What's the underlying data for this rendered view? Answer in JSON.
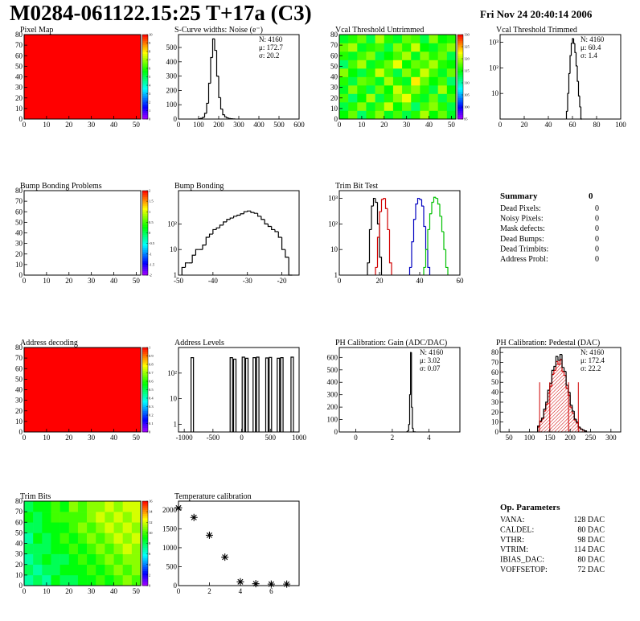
{
  "header": {
    "title": "M0284-061122.15:25 T+17a (C3)",
    "date": "Fri Nov 24 20:40:14 2006"
  },
  "chart_data": [
    {
      "type": "heatmap",
      "title": "Pixel Map",
      "xlim": [
        0,
        52
      ],
      "xticks": [
        0,
        10,
        20,
        30,
        40,
        50
      ],
      "ylim": [
        0,
        80
      ],
      "yticks": [
        0,
        10,
        20,
        30,
        40,
        50,
        60,
        70,
        80
      ],
      "zlim": [
        0,
        10
      ],
      "zticks": [
        0,
        1,
        2,
        3,
        4,
        5,
        6,
        7,
        8,
        9,
        10
      ],
      "z": [
        [
          10
        ]
      ]
    },
    {
      "type": "histogram",
      "title": "S-Curve widths: Noise (e⁻)",
      "xlim": [
        0,
        600
      ],
      "xticks": [
        0,
        100,
        200,
        300,
        400,
        500,
        600
      ],
      "ylim": [
        0,
        590
      ],
      "yticks": [
        0,
        100,
        200,
        300,
        400,
        500
      ],
      "log_y": false,
      "series": [
        {
          "color": "#000000",
          "bins": [
            100,
            110,
            120,
            130,
            140,
            150,
            160,
            170,
            180,
            190,
            200,
            210,
            220,
            230,
            240,
            250,
            260,
            270,
            280
          ],
          "counts": [
            2,
            5,
            12,
            40,
            110,
            250,
            430,
            560,
            480,
            300,
            150,
            70,
            30,
            15,
            8,
            4,
            2,
            1
          ]
        }
      ],
      "stats": [
        "N: 4160",
        "μ: 172.7",
        "σ: 20.2"
      ]
    },
    {
      "type": "heatmap",
      "title": "Vcal Threshold Untrimmed",
      "xlim": [
        0,
        52
      ],
      "xticks": [
        0,
        10,
        20,
        30,
        40,
        50
      ],
      "ylim": [
        0,
        80
      ],
      "yticks": [
        0,
        10,
        20,
        30,
        40,
        50,
        60,
        70,
        80
      ],
      "zlim": [
        95,
        130
      ],
      "zticks": [
        95,
        100,
        105,
        110,
        115,
        120,
        125,
        130
      ],
      "z": [
        [
          115,
          118,
          112,
          116,
          119,
          114,
          117,
          113,
          116,
          120,
          115,
          118,
          114
        ],
        [
          113,
          116,
          119,
          114,
          117,
          121,
          115,
          118,
          112,
          117,
          119,
          116,
          113
        ],
        [
          117,
          112,
          115,
          120,
          113,
          116,
          119,
          122,
          116,
          114,
          118,
          113,
          117
        ],
        [
          114,
          119,
          116,
          113,
          118,
          115,
          121,
          117,
          119,
          116,
          113,
          120,
          115
        ],
        [
          116,
          113,
          118,
          117,
          114,
          120,
          116,
          114,
          123,
          118,
          115,
          117,
          112
        ],
        [
          119,
          115,
          113,
          116,
          121,
          117,
          113,
          119,
          116,
          121,
          117,
          114,
          118
        ],
        [
          112,
          117,
          120,
          114,
          116,
          118,
          122,
          115,
          118,
          117,
          120,
          116,
          115
        ],
        [
          116,
          114,
          117,
          119,
          113,
          115,
          117,
          120,
          114,
          119,
          116,
          118,
          113
        ],
        [
          118,
          120,
          114,
          116,
          117,
          113,
          119,
          116,
          121,
          115,
          114,
          117,
          119
        ],
        [
          114,
          116,
          118,
          113,
          120,
          116,
          114,
          118,
          117,
          113,
          119,
          115,
          116
        ]
      ]
    },
    {
      "type": "histogram",
      "title": "Vcal Threshold Trimmed",
      "xlim": [
        0,
        100
      ],
      "xticks": [
        0,
        20,
        40,
        60,
        80,
        100
      ],
      "ylim": [
        1,
        2000
      ],
      "yticks": [
        10,
        {
          "value": 100,
          "label": "10²"
        },
        {
          "value": 1000,
          "label": "10³"
        }
      ],
      "log_y": true,
      "series": [
        {
          "color": "#000000",
          "bins": [
            55,
            56,
            57,
            58,
            59,
            60,
            61,
            62,
            63,
            64,
            65,
            66,
            67,
            68
          ],
          "counts": [
            2,
            10,
            60,
            300,
            900,
            1400,
            900,
            400,
            120,
            30,
            8,
            3,
            1
          ]
        }
      ],
      "stats": [
        "N: 4160",
        "μ: 60.4",
        "σ:  1.4"
      ]
    },
    {
      "type": "heatmap",
      "title": "Bump Bonding Problems",
      "xlim": [
        0,
        52
      ],
      "xticks": [
        0,
        10,
        20,
        30,
        40,
        50
      ],
      "ylim": [
        0,
        80
      ],
      "yticks": [
        0,
        10,
        20,
        30,
        40,
        50,
        60,
        70,
        80
      ],
      "zlim": [
        -2,
        2
      ],
      "zticks": [
        -2,
        -1.5,
        -1,
        -0.5,
        0,
        0.5,
        1,
        1.5,
        2
      ]
    },
    {
      "type": "histogram",
      "title": "Bump Bonding",
      "xlim": [
        -50,
        -15
      ],
      "xticks": [
        -50,
        -40,
        -30,
        -20
      ],
      "ylim": [
        1,
        2000
      ],
      "yticks": [
        1,
        10,
        {
          "value": 100,
          "label": "10²"
        }
      ],
      "log_y": true,
      "series": [
        {
          "color": "#000000",
          "bins": [
            -49,
            -48,
            -47,
            -46,
            -45,
            -44,
            -43,
            -42,
            -41,
            -40,
            -39,
            -38,
            -37,
            -36,
            -35,
            -34,
            -33,
            -32,
            -31,
            -30,
            -29,
            -28,
            -27,
            -26,
            -25,
            -24,
            -23,
            -22,
            -21,
            -20,
            -19,
            -18,
            -17
          ],
          "counts": [
            2,
            3,
            3,
            6,
            10,
            10,
            15,
            30,
            40,
            60,
            70,
            90,
            120,
            150,
            170,
            200,
            220,
            250,
            300,
            320,
            280,
            260,
            200,
            150,
            100,
            80,
            60,
            50,
            30,
            10,
            5,
            1
          ]
        }
      ]
    },
    {
      "type": "histogram",
      "title": "Trim Bit Test",
      "xlim": [
        0,
        60
      ],
      "xticks": [
        0,
        20,
        40,
        60
      ],
      "ylim": [
        1,
        2000
      ],
      "yticks": [
        1,
        10,
        {
          "value": 100,
          "label": "10²"
        },
        {
          "value": 1000,
          "label": "10³"
        }
      ],
      "log_y": true,
      "series": [
        {
          "color": "#000000",
          "bins": [
            14,
            15,
            16,
            17,
            18,
            19,
            20,
            21
          ],
          "counts": [
            3,
            60,
            500,
            1000,
            700,
            100,
            5
          ]
        },
        {
          "color": "#d00000",
          "bins": [
            18,
            19,
            20,
            21,
            22,
            23,
            24,
            25,
            26
          ],
          "counts": [
            2,
            30,
            300,
            900,
            1000,
            400,
            60,
            3
          ]
        },
        {
          "color": "#0000c0",
          "bins": [
            35,
            36,
            37,
            38,
            39,
            40,
            41,
            42,
            43,
            44,
            45
          ],
          "counts": [
            2,
            20,
            150,
            600,
            1000,
            900,
            500,
            80,
            10,
            2
          ]
        },
        {
          "color": "#00c000",
          "bins": [
            42,
            43,
            44,
            45,
            46,
            47,
            48,
            49,
            50,
            51,
            52,
            53,
            54
          ],
          "counts": [
            2,
            10,
            60,
            250,
            700,
            1100,
            1000,
            600,
            200,
            50,
            10,
            2
          ]
        }
      ]
    },
    {
      "type": "heatmap",
      "title": "Address decoding",
      "xlim": [
        0,
        52
      ],
      "xticks": [
        0,
        10,
        20,
        30,
        40,
        50
      ],
      "ylim": [
        0,
        80
      ],
      "yticks": [
        0,
        10,
        20,
        30,
        40,
        50,
        60,
        70,
        80
      ],
      "zlim": [
        0,
        1
      ],
      "zticks": [
        0,
        0.1,
        0.2,
        0.3,
        0.4,
        0.5,
        0.6,
        0.7,
        0.8,
        0.9,
        1
      ],
      "z": [
        [
          1
        ]
      ]
    },
    {
      "type": "spikes",
      "title": "Address Levels",
      "xlim": [
        -1100,
        1000
      ],
      "xticks": [
        -1000,
        -500,
        0,
        500,
        1000
      ],
      "ylim": [
        0.5,
        1000
      ],
      "yticks": [
        1,
        10,
        {
          "value": 100,
          "label": "10²"
        }
      ],
      "log_y": true,
      "color": "#000000",
      "x": [
        -860,
        -180,
        -120,
        30,
        90,
        220,
        280,
        440,
        500,
        640,
        700,
        880
      ],
      "values": [
        400,
        400,
        350,
        420,
        380,
        400,
        420,
        390,
        410,
        380,
        400,
        420
      ]
    },
    {
      "type": "histogram",
      "title": "PH Calibration: Gain (ADC/DAC)",
      "xlim": [
        -0.9,
        5.7
      ],
      "xticks": [
        0,
        2,
        4
      ],
      "ylim": [
        0,
        680
      ],
      "yticks": [
        0,
        100,
        200,
        300,
        400,
        500,
        600
      ],
      "log_y": false,
      "series": [
        {
          "color": "#000000",
          "bins": [
            2.8,
            2.85,
            2.9,
            2.95,
            3.0,
            3.05,
            3.1,
            3.15,
            3.2,
            3.25
          ],
          "counts": [
            2,
            10,
            60,
            300,
            640,
            200,
            30,
            3,
            1
          ]
        }
      ],
      "stats": [
        "N: 4160",
        "μ: 3.02",
        "σ: 0.07"
      ]
    },
    {
      "type": "histogram",
      "title": "PH Calibration: Pedestal (DAC)",
      "xlim": [
        28,
        324
      ],
      "xticks": [
        50,
        100,
        150,
        200,
        250,
        300
      ],
      "ylim": [
        0,
        85
      ],
      "yticks": [
        0,
        10,
        20,
        30,
        40,
        50,
        60,
        70,
        80
      ],
      "log_y": false,
      "series": [
        {
          "color": "#d00000",
          "hatch": true,
          "bins": [
            120,
            125,
            130,
            135,
            140,
            145,
            150,
            155,
            160,
            165,
            170,
            175,
            180,
            185,
            190,
            195,
            200,
            205,
            210,
            215,
            220,
            225,
            230,
            235,
            240
          ],
          "counts": [
            5,
            10,
            13,
            21,
            28,
            39,
            46,
            58,
            62,
            71,
            68,
            73,
            61,
            57,
            44,
            37,
            25,
            19,
            12,
            9,
            4,
            3,
            2,
            1
          ]
        },
        {
          "color": "#000000",
          "bins": [
            120,
            125,
            130,
            135,
            140,
            145,
            150,
            155,
            160,
            165,
            170,
            175,
            180,
            185,
            190,
            195,
            200,
            205,
            210,
            215,
            220,
            225,
            230,
            235,
            240
          ],
          "counts": [
            6,
            11,
            14,
            23,
            30,
            42,
            49,
            62,
            66,
            76,
            72,
            78,
            65,
            61,
            47,
            40,
            27,
            21,
            13,
            10,
            5,
            3,
            2,
            1
          ]
        }
      ],
      "cut_x": [
        125,
        150,
        196,
        220
      ],
      "cut_height": 50,
      "cut_color": "#d00000",
      "stats": [
        "N: 4160",
        "μ: 172.4",
        "σ: 22.2"
      ],
      "stats_colors": [
        "#000000",
        "#d00000",
        "#d00000"
      ]
    },
    {
      "type": "heatmap",
      "title": "Trim Bits",
      "xlim": [
        0,
        52
      ],
      "xticks": [
        0,
        10,
        20,
        30,
        40,
        50
      ],
      "ylim": [
        0,
        80
      ],
      "yticks": [
        0,
        10,
        20,
        30,
        40,
        50,
        60,
        70,
        80
      ],
      "zlim": [
        0,
        16
      ],
      "zticks": [
        0,
        2,
        4,
        6,
        8,
        10,
        12,
        14,
        16
      ],
      "z": [
        [
          7,
          8,
          7,
          9,
          8,
          8,
          9,
          9,
          10,
          9,
          10,
          11,
          10
        ],
        [
          8,
          7,
          8,
          8,
          9,
          9,
          9,
          10,
          9,
          10,
          11,
          10,
          11
        ],
        [
          7,
          8,
          9,
          8,
          8,
          9,
          10,
          9,
          10,
          11,
          10,
          11,
          11
        ],
        [
          8,
          8,
          8,
          9,
          9,
          10,
          9,
          10,
          11,
          10,
          11,
          12,
          11
        ],
        [
          7,
          9,
          8,
          9,
          10,
          9,
          10,
          11,
          10,
          11,
          12,
          11,
          12
        ],
        [
          8,
          8,
          9,
          9,
          9,
          10,
          11,
          10,
          11,
          12,
          11,
          12,
          11
        ],
        [
          9,
          8,
          9,
          10,
          10,
          10,
          10,
          11,
          12,
          11,
          12,
          11,
          12
        ],
        [
          8,
          9,
          9,
          10,
          9,
          11,
          10,
          11,
          11,
          12,
          11,
          12,
          12
        ]
      ]
    },
    {
      "type": "scatter",
      "title": "Temperature calibration",
      "xlim": [
        0,
        7.8
      ],
      "xticks": [
        0,
        2,
        4,
        6
      ],
      "ylim": [
        0,
        2230
      ],
      "yticks": [
        0,
        500,
        1000,
        1500,
        2000
      ],
      "log_y": false,
      "color": "#000000",
      "x": [
        0,
        1,
        2,
        3,
        4,
        5,
        6,
        7
      ],
      "values": [
        2050,
        1800,
        1330,
        750,
        100,
        50,
        40,
        40
      ]
    }
  ],
  "summary": {
    "title": "Summary",
    "total": 0,
    "rows": [
      {
        "label": "Dead Pixels:",
        "value": 0
      },
      {
        "label": "Noisy Pixels:",
        "value": 0
      },
      {
        "label": "Mask defects:",
        "value": 0
      },
      {
        "label": "Dead Bumps:",
        "value": 0
      },
      {
        "label": "Dead Trimbits:",
        "value": 0
      },
      {
        "label": "Address Probl:",
        "value": 0
      }
    ]
  },
  "op_parameters": {
    "title": "Op. Parameters",
    "rows": [
      {
        "label": "VANA:",
        "value": "128 DAC"
      },
      {
        "label": "CALDEL:",
        "value": "80 DAC"
      },
      {
        "label": "VTHR:",
        "value": "98 DAC"
      },
      {
        "label": "VTRIM:",
        "value": "114 DAC"
      },
      {
        "label": "IBIAS_DAC:",
        "value": "80 DAC"
      },
      {
        "label": "VOFFSETOP:",
        "value": "72 DAC"
      }
    ]
  }
}
